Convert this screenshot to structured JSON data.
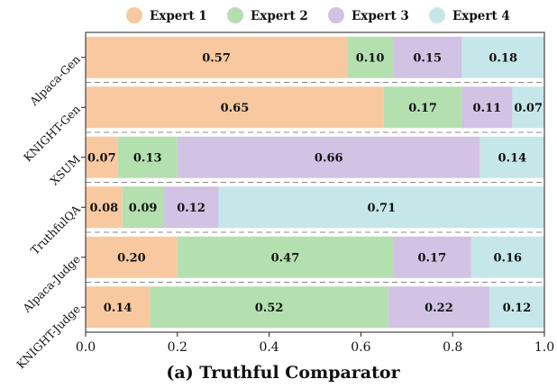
{
  "chart_data": {
    "type": "bar",
    "orientation": "horizontal",
    "stacked": true,
    "categories": [
      "Alpaca-Gen",
      "KNIGHT-Gen",
      "XSUM",
      "TruthfulQA",
      "Alpaca-Judge",
      "KNIGHT-Judge"
    ],
    "series": [
      {
        "name": "Expert 1",
        "color": "#f8c9a0",
        "values": [
          0.57,
          0.65,
          0.07,
          0.08,
          0.2,
          0.14
        ]
      },
      {
        "name": "Expert 2",
        "color": "#b4e0b0",
        "values": [
          0.1,
          0.17,
          0.13,
          0.09,
          0.47,
          0.52
        ]
      },
      {
        "name": "Expert 3",
        "color": "#d2c2e4",
        "values": [
          0.15,
          0.11,
          0.66,
          0.12,
          0.17,
          0.22
        ]
      },
      {
        "name": "Expert 4",
        "color": "#c6e7ea",
        "values": [
          0.18,
          0.07,
          0.14,
          0.71,
          0.16,
          0.12
        ]
      }
    ],
    "data_labels": [
      [
        "0.57",
        "0.10",
        "0.15",
        "0.18"
      ],
      [
        "0.65",
        "0.17",
        "0.11",
        "0.07"
      ],
      [
        "0.07",
        "0.13",
        "0.66",
        "0.14"
      ],
      [
        "0.08",
        "0.09",
        "0.12",
        "0.71"
      ],
      [
        "0.20",
        "0.47",
        "0.17",
        "0.16"
      ],
      [
        "0.14",
        "0.52",
        "0.22",
        "0.12"
      ]
    ],
    "xlim": [
      0,
      1.0
    ],
    "xticks": [
      "0.0",
      "0.2",
      "0.4",
      "0.6",
      "0.8",
      "1.0"
    ],
    "caption": "(a) Truthful Comparator",
    "legend_position": "top",
    "separators": "dashed",
    "grid": false
  }
}
